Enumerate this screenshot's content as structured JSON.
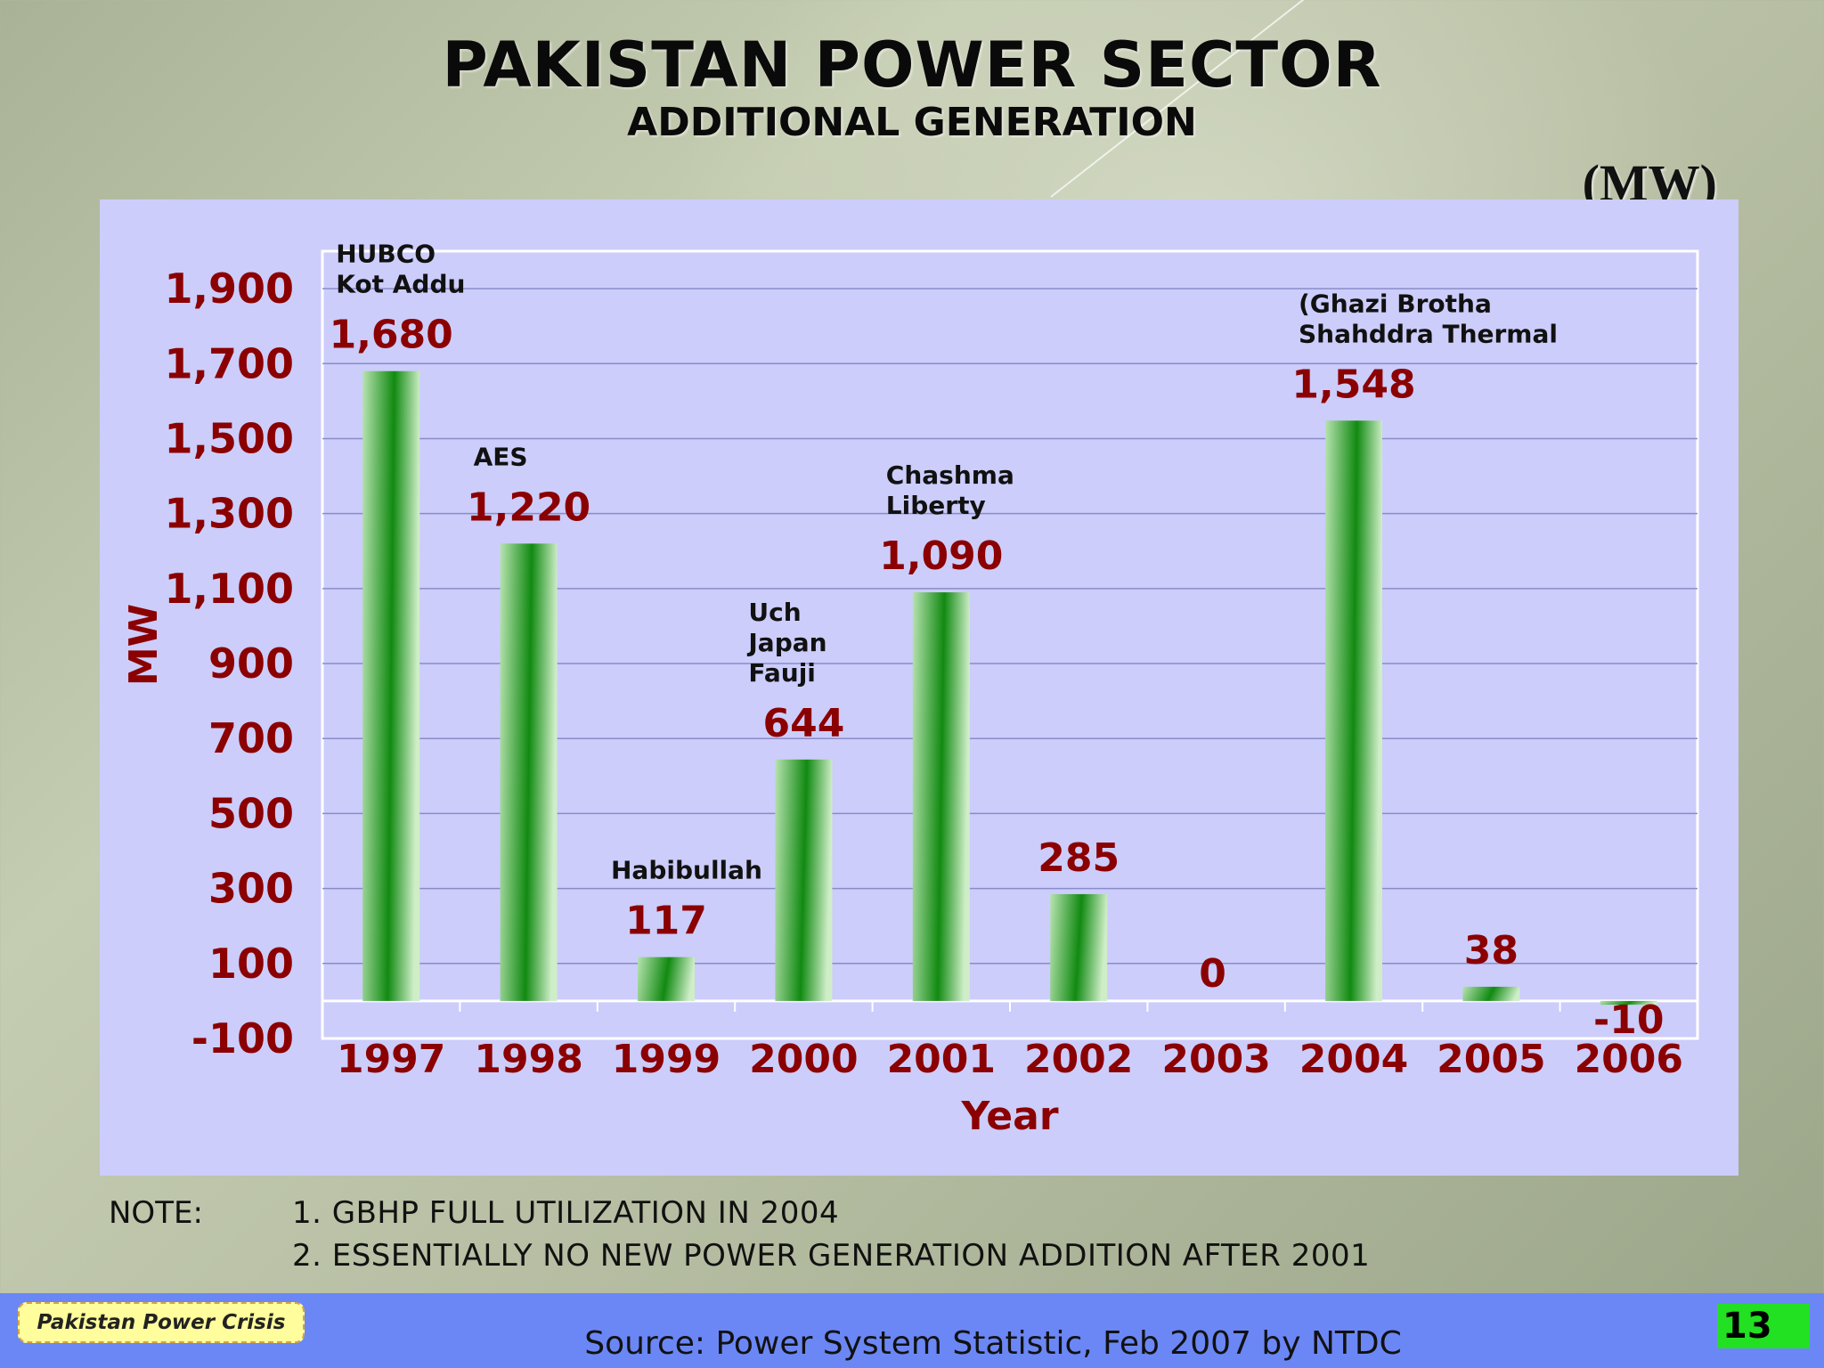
{
  "title": "PAKISTAN POWER SECTOR",
  "subtitle": "ADDITIONAL GENERATION",
  "unit": "(MW)",
  "chart_data": {
    "type": "bar",
    "categories": [
      "1997",
      "1998",
      "1999",
      "2000",
      "2001",
      "2002",
      "2003",
      "2004",
      "2005",
      "2006"
    ],
    "values": [
      1680,
      1220,
      117,
      644,
      1090,
      285,
      0,
      1548,
      38,
      -10
    ],
    "value_labels": [
      "1,680",
      "1,220",
      "117",
      "644",
      "1,090",
      "285",
      "0",
      "1,548",
      "38",
      "-10"
    ],
    "annotations": [
      [
        "HUBCO",
        "Kot Addu"
      ],
      [
        "AES"
      ],
      [
        "Habibullah"
      ],
      [
        "Uch",
        "Japan",
        "Fauji"
      ],
      [
        "Chashma",
        "Liberty"
      ],
      [],
      [],
      [
        "(Ghazi Brotha",
        "Shahddra Thermal"
      ],
      [],
      []
    ],
    "xlabel": "Year",
    "ylabel": "MW",
    "ylim": [
      -100,
      1900
    ],
    "yticks": [
      -100,
      100,
      300,
      500,
      700,
      900,
      1100,
      1300,
      1500,
      1700,
      1900
    ],
    "ytick_labels": [
      "-100",
      "100",
      "300",
      "500",
      "700",
      "900",
      "1,100",
      "1,300",
      "1,500",
      "1,700",
      "1,900"
    ],
    "grid": true,
    "colors": {
      "bar_dark": "#118a11",
      "bar_light": "#b7e3b0",
      "value_label": "#8b0000",
      "plot_bg": "#cccdfb",
      "grid": "#8a8cc8"
    }
  },
  "notes": {
    "label": "NOTE:",
    "lines": [
      "1. GBHP FULL UTILIZATION IN 2004",
      "2. ESSENTIALLY NO NEW POWER GENERATION ADDITION AFTER 2001"
    ]
  },
  "footer": {
    "badge": "Pakistan Power Crisis",
    "source": "Source: Power System Statistic, Feb 2007 by NTDC",
    "page_number": "13"
  }
}
